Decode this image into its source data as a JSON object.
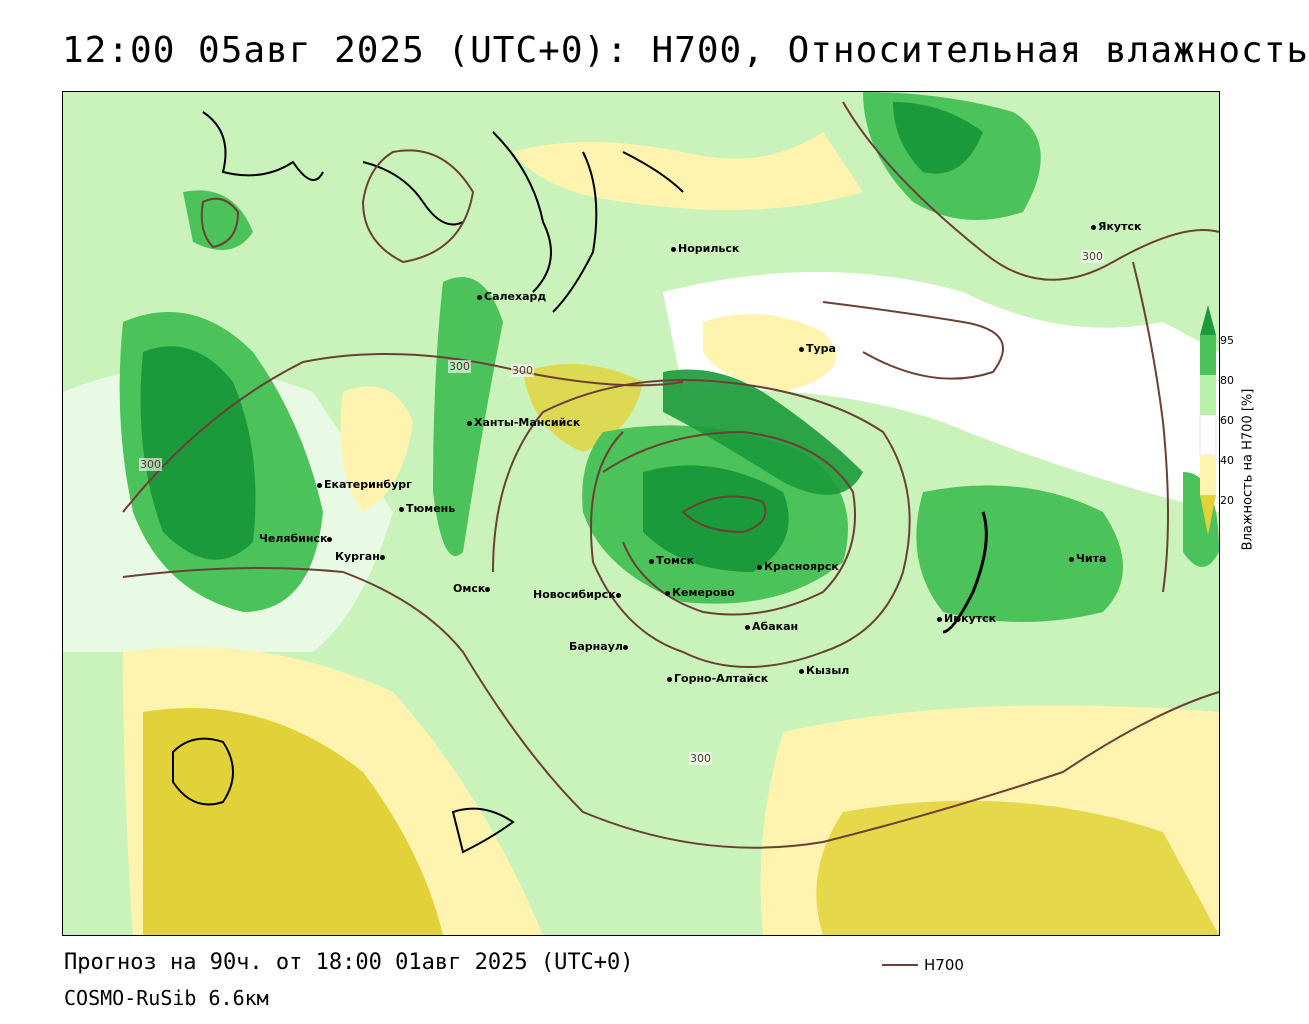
{
  "header": {
    "title": "12:00 05авг 2025 (UTC+0): H700, Относительная влажность"
  },
  "footer": {
    "forecast": "Прогноз на 90ч. от 18:00 01авг 2025 (UTC+0)",
    "model": "COSMO-RuSib 6.6км"
  },
  "legend": {
    "contour_label": "H700",
    "contour_color": "#6b4035",
    "colorbar_title": "Влажность на H700 [%]",
    "ticks": [
      "95",
      "80",
      "60",
      "40",
      "20"
    ],
    "colors": {
      "dark_green": "#1a9a3a",
      "green": "#4cc35a",
      "light_green": "#b7f0a8",
      "light_yellow": "#fff3b0",
      "yellow": "#e2d23a"
    }
  },
  "contour_labels": [
    "300",
    "300",
    "300",
    "300",
    "300"
  ],
  "cities": [
    {
      "name": "Якутск"
    },
    {
      "name": "Норильск"
    },
    {
      "name": "Салехард"
    },
    {
      "name": "Тура"
    },
    {
      "name": "Ханты-Мансийск"
    },
    {
      "name": "Екатеринбург"
    },
    {
      "name": "Тюмень"
    },
    {
      "name": "Челябинск"
    },
    {
      "name": "Курган"
    },
    {
      "name": "Омск"
    },
    {
      "name": "Новосибирск"
    },
    {
      "name": "Томск"
    },
    {
      "name": "Кемерово"
    },
    {
      "name": "Красноярск"
    },
    {
      "name": "Барнаул"
    },
    {
      "name": "Абакан"
    },
    {
      "name": "Горно-Алтайск"
    },
    {
      "name": "Кызыл"
    },
    {
      "name": "Иркутск"
    },
    {
      "name": "Чита"
    }
  ]
}
